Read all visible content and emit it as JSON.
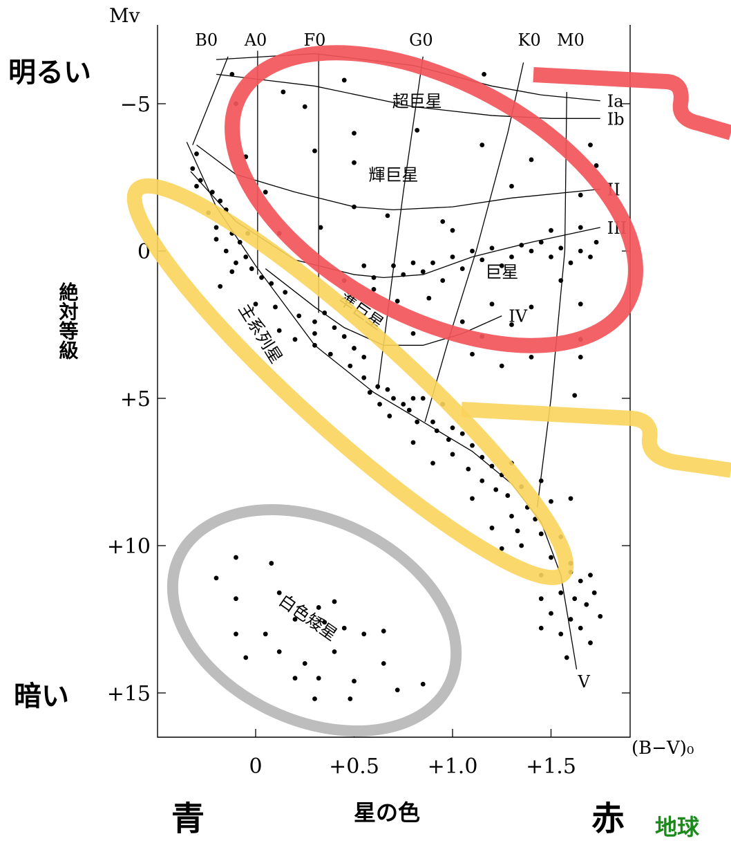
{
  "chart_data": {
    "type": "scatter",
    "title": "",
    "xlabel": "星の色",
    "ylabel": "絶対等級",
    "x_axis_symbol": "(B−V)₀",
    "y_axis_symbol": "Mv",
    "xlim": [
      -0.5,
      1.95
    ],
    "ylim": [
      16.5,
      -7.3
    ],
    "y_inverted": true,
    "grid": false,
    "x_ticks": [
      {
        "value": 0,
        "label": "0"
      },
      {
        "value": 0.5,
        "label": "+0.5"
      },
      {
        "value": 1.0,
        "label": "+1.0"
      },
      {
        "value": 1.5,
        "label": "+1.5"
      }
    ],
    "y_ticks": [
      {
        "value": -5,
        "label": "−5"
      },
      {
        "value": 0,
        "label": "0"
      },
      {
        "value": 5,
        "label": "+5"
      },
      {
        "value": 10,
        "label": "+10"
      },
      {
        "value": 15,
        "label": "+15"
      }
    ],
    "spectral_types": [
      {
        "label": "B0",
        "x": -0.25
      },
      {
        "label": "A0",
        "x": 0.0
      },
      {
        "label": "F0",
        "x": 0.3
      },
      {
        "label": "G0",
        "x": 0.84
      },
      {
        "label": "K0",
        "x": 1.39
      },
      {
        "label": "M0",
        "x": 1.6
      }
    ],
    "spectral_lines": [
      {
        "points": [
          [
            -0.32,
            -3.6
          ],
          [
            -0.14,
            -6.6
          ]
        ]
      },
      {
        "points": [
          [
            0.01,
            -6.8
          ],
          [
            0.01,
            0.8
          ]
        ]
      },
      {
        "points": [
          [
            0.32,
            -6.7
          ],
          [
            0.32,
            2.1
          ]
        ]
      },
      {
        "points": [
          [
            0.85,
            -6.6
          ],
          [
            0.75,
            -2.0
          ],
          [
            0.62,
            4.7
          ]
        ]
      },
      {
        "points": [
          [
            1.36,
            -6.4
          ],
          [
            1.28,
            -4.0
          ],
          [
            1.12,
            0.0
          ],
          [
            0.98,
            3.0
          ],
          [
            0.86,
            5.8
          ]
        ]
      },
      {
        "points": [
          [
            1.58,
            -5.4
          ],
          [
            1.57,
            0.0
          ],
          [
            1.5,
            5.0
          ],
          [
            1.43,
            8.7
          ]
        ]
      }
    ],
    "luminosity_classes": [
      {
        "label": "Ia",
        "points": [
          [
            -0.2,
            -6.5
          ],
          [
            0.3,
            -6.7
          ],
          [
            0.8,
            -6.3
          ],
          [
            1.2,
            -5.6
          ],
          [
            1.45,
            -5.3
          ],
          [
            1.75,
            -5.1
          ]
        ]
      },
      {
        "label": "Ib",
        "points": [
          [
            -0.2,
            -6.0
          ],
          [
            0.3,
            -5.6
          ],
          [
            0.8,
            -4.9
          ],
          [
            1.2,
            -4.6
          ],
          [
            1.5,
            -4.5
          ],
          [
            1.75,
            -4.5
          ]
        ]
      },
      {
        "label": "II",
        "points": [
          [
            -0.3,
            -3.6
          ],
          [
            -0.1,
            -2.6
          ],
          [
            0.2,
            -2.0
          ],
          [
            0.5,
            -1.5
          ],
          [
            0.7,
            -1.4
          ],
          [
            1.0,
            -1.5
          ],
          [
            1.3,
            -1.8
          ],
          [
            1.75,
            -2.1
          ]
        ]
      },
      {
        "label": "III",
        "points": [
          [
            -0.33,
            -2.7
          ],
          [
            -0.1,
            -1.0
          ],
          [
            0.2,
            0.3
          ],
          [
            0.5,
            0.8
          ],
          [
            0.65,
            0.9
          ],
          [
            0.85,
            0.8
          ],
          [
            1.1,
            0.2
          ],
          [
            1.4,
            -0.3
          ],
          [
            1.75,
            -0.8
          ]
        ]
      },
      {
        "label": "IV",
        "points": [
          [
            0.05,
            0.6
          ],
          [
            0.3,
            1.9
          ],
          [
            0.45,
            2.6
          ],
          [
            0.65,
            3.2
          ],
          [
            0.85,
            3.2
          ],
          [
            1.05,
            2.8
          ],
          [
            1.25,
            2.2
          ]
        ]
      },
      {
        "label": "V",
        "points": [
          [
            -0.35,
            -3.7
          ],
          [
            -0.2,
            -1.5
          ],
          [
            0.0,
            0.5
          ],
          [
            0.3,
            3.2
          ],
          [
            0.6,
            4.8
          ],
          [
            0.9,
            6.0
          ],
          [
            1.1,
            6.8
          ],
          [
            1.3,
            7.9
          ],
          [
            1.45,
            9.2
          ],
          [
            1.55,
            11.0
          ],
          [
            1.63,
            14.2
          ]
        ]
      }
    ],
    "regions": [
      {
        "label": "超巨星",
        "x": 0.82,
        "y": -4.9,
        "angle": 0
      },
      {
        "label": "輝巨星",
        "x": 0.7,
        "y": -2.4,
        "angle": 0
      },
      {
        "label": "巨星",
        "x": 1.25,
        "y": 0.9,
        "angle": 0
      },
      {
        "label": "準巨星",
        "x": 0.52,
        "y": 2.2,
        "angle": 35
      },
      {
        "label": "主系列星",
        "x": 0.0,
        "y": 2.9,
        "angle": 58
      },
      {
        "label": "白色矮星",
        "x": 0.25,
        "y": 12.6,
        "angle": 35
      }
    ],
    "series": [
      {
        "name": "",
        "points": [
          [
            0.45,
            -5.8
          ],
          [
            1.16,
            -6.0
          ],
          [
            0.14,
            -5.4
          ],
          [
            0.25,
            -4.9
          ],
          [
            -0.12,
            -6.0
          ],
          [
            -0.1,
            -5.0
          ],
          [
            0.82,
            -4.1
          ],
          [
            0.5,
            -4.0
          ],
          [
            0.3,
            -3.4
          ],
          [
            1.15,
            -3.6
          ],
          [
            1.4,
            -3.1
          ],
          [
            1.7,
            -3.6
          ],
          [
            1.73,
            -2.9
          ],
          [
            -0.05,
            -3.2
          ],
          [
            0.5,
            -3.0
          ],
          [
            -0.3,
            -3.3
          ],
          [
            0.05,
            -2.0
          ],
          [
            0.5,
            -1.5
          ],
          [
            0.67,
            -1.2
          ],
          [
            0.95,
            -1.0
          ],
          [
            1.3,
            -2.2
          ],
          [
            1.65,
            -1.9
          ],
          [
            1.0,
            -0.7
          ],
          [
            0.33,
            -0.8
          ],
          [
            0.12,
            -0.6
          ],
          [
            -0.32,
            -2.8
          ],
          [
            -0.28,
            -2.4
          ],
          [
            -0.22,
            -2.0
          ],
          [
            -0.18,
            -1.7
          ],
          [
            -0.24,
            -1.3
          ],
          [
            -0.2,
            -0.8
          ],
          [
            -0.12,
            -0.6
          ],
          [
            -0.08,
            -0.3
          ],
          [
            -0.04,
            -0.6
          ],
          [
            -0.15,
            -1.4
          ],
          [
            -0.3,
            -2.2
          ],
          [
            -0.2,
            -0.4
          ],
          [
            -0.15,
            0.0
          ],
          [
            -0.05,
            0.2
          ],
          [
            -0.1,
            0.4
          ],
          [
            -0.02,
            0.6
          ],
          [
            0.03,
            0.9
          ],
          [
            -0.12,
            0.7
          ],
          [
            -0.18,
            1.2
          ],
          [
            0.08,
            1.1
          ],
          [
            0.15,
            1.4
          ],
          [
            0.0,
            1.8
          ],
          [
            0.1,
            1.9
          ],
          [
            0.22,
            2.2
          ],
          [
            0.3,
            2.4
          ],
          [
            0.35,
            2.1
          ],
          [
            0.4,
            2.6
          ],
          [
            0.3,
            2.8
          ],
          [
            0.2,
            3.0
          ],
          [
            0.12,
            2.7
          ],
          [
            0.45,
            2.9
          ],
          [
            0.5,
            3.3
          ],
          [
            0.55,
            3.6
          ],
          [
            0.48,
            3.9
          ],
          [
            0.38,
            3.5
          ],
          [
            0.3,
            3.2
          ],
          [
            0.55,
            4.3
          ],
          [
            0.62,
            4.6
          ],
          [
            0.67,
            4.7
          ],
          [
            0.7,
            5.0
          ],
          [
            0.63,
            5.2
          ],
          [
            0.58,
            4.8
          ],
          [
            0.75,
            5.2
          ],
          [
            0.8,
            5.0
          ],
          [
            0.85,
            5.0
          ],
          [
            0.78,
            5.4
          ],
          [
            0.68,
            5.6
          ],
          [
            0.82,
            5.8
          ],
          [
            0.9,
            5.8
          ],
          [
            0.95,
            5.2
          ],
          [
            1.0,
            6.0
          ],
          [
            0.92,
            6.1
          ],
          [
            0.98,
            6.4
          ],
          [
            1.05,
            6.2
          ],
          [
            0.8,
            6.5
          ],
          [
            1.1,
            6.6
          ],
          [
            1.0,
            6.9
          ],
          [
            1.08,
            7.4
          ],
          [
            0.9,
            7.2
          ],
          [
            1.15,
            7.0
          ],
          [
            1.2,
            7.3
          ],
          [
            1.25,
            7.6
          ],
          [
            1.3,
            7.2
          ],
          [
            1.15,
            7.8
          ],
          [
            1.22,
            8.1
          ],
          [
            1.28,
            8.3
          ],
          [
            1.1,
            8.4
          ],
          [
            1.35,
            8.0
          ],
          [
            1.45,
            7.8
          ],
          [
            1.38,
            8.7
          ],
          [
            1.3,
            9.0
          ],
          [
            1.42,
            9.1
          ],
          [
            1.5,
            8.5
          ],
          [
            1.6,
            8.4
          ],
          [
            1.2,
            9.4
          ],
          [
            1.33,
            9.5
          ],
          [
            1.45,
            9.6
          ],
          [
            1.55,
            9.7
          ],
          [
            1.35,
            10.0
          ],
          [
            1.25,
            10.1
          ],
          [
            1.5,
            10.4
          ],
          [
            1.6,
            10.6
          ],
          [
            1.45,
            11.0
          ],
          [
            1.6,
            10.9
          ],
          [
            1.65,
            11.2
          ],
          [
            1.7,
            11.0
          ],
          [
            1.55,
            11.6
          ],
          [
            1.62,
            11.8
          ],
          [
            1.72,
            11.6
          ],
          [
            1.68,
            12.0
          ],
          [
            1.45,
            11.8
          ],
          [
            1.5,
            12.3
          ],
          [
            1.6,
            12.5
          ],
          [
            1.75,
            12.4
          ],
          [
            1.65,
            12.8
          ],
          [
            1.55,
            13.0
          ],
          [
            1.7,
            13.3
          ],
          [
            1.45,
            12.8
          ],
          [
            1.58,
            13.8
          ],
          [
            0.55,
            0.5
          ],
          [
            0.6,
            0.9
          ],
          [
            0.7,
            0.5
          ],
          [
            0.75,
            0.8
          ],
          [
            0.8,
            0.4
          ],
          [
            0.85,
            0.7
          ],
          [
            0.9,
            0.4
          ],
          [
            0.95,
            1.0
          ],
          [
            1.0,
            0.2
          ],
          [
            1.05,
            0.6
          ],
          [
            1.1,
            0.0
          ],
          [
            1.15,
            0.3
          ],
          [
            1.2,
            -0.1
          ],
          [
            1.3,
            0.2
          ],
          [
            1.35,
            -0.2
          ],
          [
            1.25,
            0.5
          ],
          [
            1.4,
            0.0
          ],
          [
            1.45,
            -0.3
          ],
          [
            1.5,
            0.2
          ],
          [
            1.55,
            -0.1
          ],
          [
            1.6,
            0.4
          ],
          [
            1.65,
            0.0
          ],
          [
            1.7,
            0.2
          ],
          [
            1.73,
            -0.3
          ],
          [
            1.65,
            -0.8
          ],
          [
            1.5,
            -0.7
          ],
          [
            1.55,
            1.0
          ],
          [
            1.65,
            1.8
          ],
          [
            1.4,
            1.9
          ],
          [
            1.2,
            1.8
          ],
          [
            1.05,
            2.4
          ],
          [
            0.8,
            2.8
          ],
          [
            1.15,
            2.9
          ],
          [
            1.3,
            2.5
          ],
          [
            1.65,
            3.0
          ],
          [
            1.65,
            3.6
          ],
          [
            1.62,
            4.9
          ],
          [
            1.1,
            3.5
          ],
          [
            1.25,
            3.9
          ],
          [
            1.4,
            3.6
          ],
          [
            0.88,
            1.6
          ],
          [
            0.72,
            1.7
          ],
          [
            0.6,
            1.3
          ],
          [
            0.45,
            1.0
          ],
          [
            -0.1,
            10.4
          ],
          [
            0.08,
            10.6
          ],
          [
            -0.2,
            11.1
          ],
          [
            0.12,
            11.6
          ],
          [
            0.4,
            11.9
          ],
          [
            0.32,
            12.1
          ],
          [
            0.2,
            12.5
          ],
          [
            0.35,
            12.6
          ],
          [
            -0.1,
            11.8
          ],
          [
            0.45,
            12.8
          ],
          [
            0.55,
            13.0
          ],
          [
            0.65,
            12.9
          ],
          [
            -0.1,
            13.0
          ],
          [
            0.05,
            13.0
          ],
          [
            0.12,
            13.6
          ],
          [
            -0.05,
            13.8
          ],
          [
            0.25,
            14.0
          ],
          [
            0.4,
            13.6
          ],
          [
            0.65,
            14.0
          ],
          [
            0.2,
            14.5
          ],
          [
            0.32,
            14.5
          ],
          [
            0.5,
            14.6
          ],
          [
            0.72,
            14.9
          ],
          [
            0.85,
            14.7
          ],
          [
            0.3,
            15.2
          ],
          [
            0.48,
            15.2
          ]
        ]
      }
    ],
    "highlights": [
      {
        "color": "#f2555a"
      },
      {
        "color": "#f9d45c"
      },
      {
        "color": "#bdbdbd"
      }
    ],
    "side_labels": {
      "bright": "明るい",
      "dark": "暗い",
      "blue": "青",
      "red": "赤",
      "earth": "地球"
    },
    "colors": {
      "axis": "#000000",
      "dots": "#000000",
      "red_ring": "#f2555a",
      "yellow_ring": "#f9d45c",
      "gray_ring": "#bdbdbd",
      "earth_text": "#1a8a1a"
    }
  }
}
